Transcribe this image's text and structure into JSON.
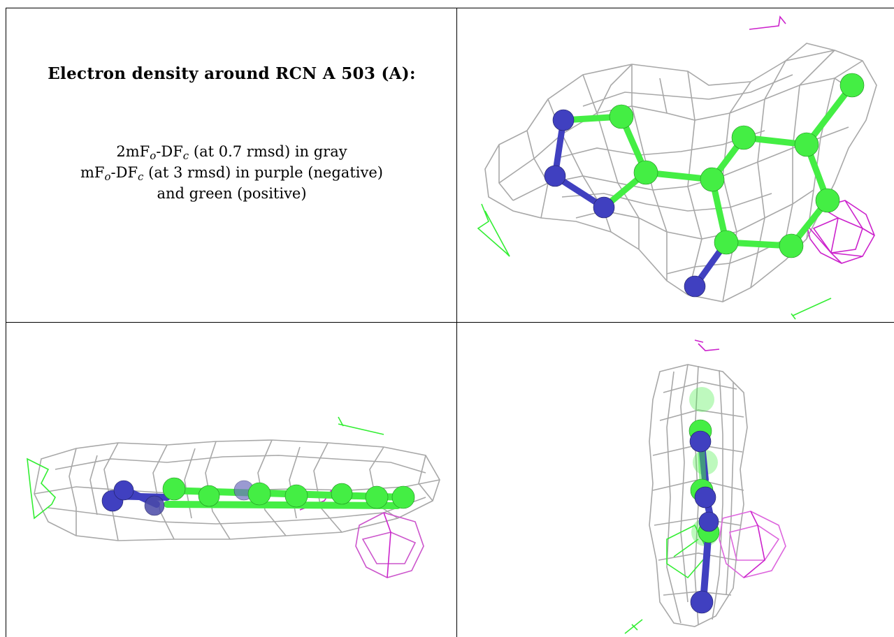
{
  "caption": {
    "title": "Electron density around RCN A 503 (A):",
    "line1": {
      "a": "2mF",
      "o": "o",
      "b": "-DF",
      "c": "c",
      "rest": " (at 0.7 rmsd) in gray"
    },
    "line2": {
      "a": "mF",
      "o": "o",
      "b": "-DF",
      "c": "c",
      "rest": " (at 3 rmsd) in purple (negative)"
    },
    "line3": "and green (positive)"
  },
  "views": [
    "view-top-right",
    "view-bottom-left",
    "view-bottom-right"
  ],
  "colors": {
    "mesh_2fofc": "#a8a8a8",
    "negative": "#cc22cc",
    "positive": "#33ee33",
    "carbon": "#44ee44",
    "nitrogen": "#4040c0"
  }
}
